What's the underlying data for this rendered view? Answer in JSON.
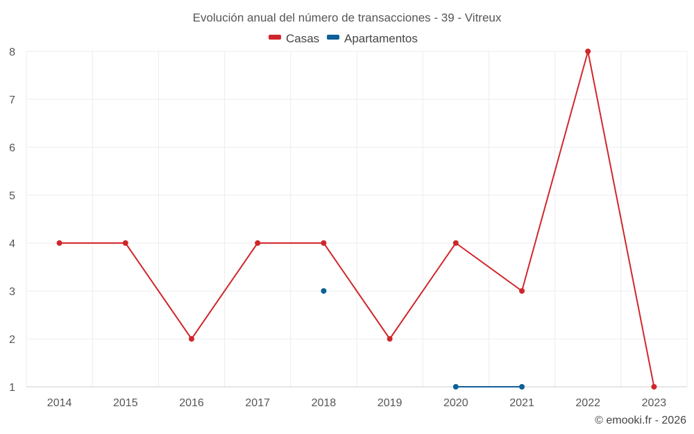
{
  "chart_data": {
    "type": "line",
    "title": "Evolución anual del número de transacciones - 39 - Vitreux",
    "categories": [
      "2014",
      "2015",
      "2016",
      "2017",
      "2018",
      "2019",
      "2020",
      "2021",
      "2022",
      "2023"
    ],
    "series": [
      {
        "name": "Casas",
        "color": "#d0262b",
        "values": [
          4,
          4,
          2,
          4,
          4,
          2,
          4,
          3,
          8,
          1
        ]
      },
      {
        "name": "Apartamentos",
        "color": "#0e6098",
        "values": [
          null,
          null,
          null,
          null,
          3,
          null,
          1,
          1,
          null,
          null
        ]
      }
    ],
    "yticks": [
      1,
      2,
      3,
      4,
      5,
      6,
      7,
      8
    ],
    "ylim": [
      1,
      8
    ],
    "grid": true,
    "legend_position": "top-center",
    "credit": "© emooki.fr - 2026"
  }
}
